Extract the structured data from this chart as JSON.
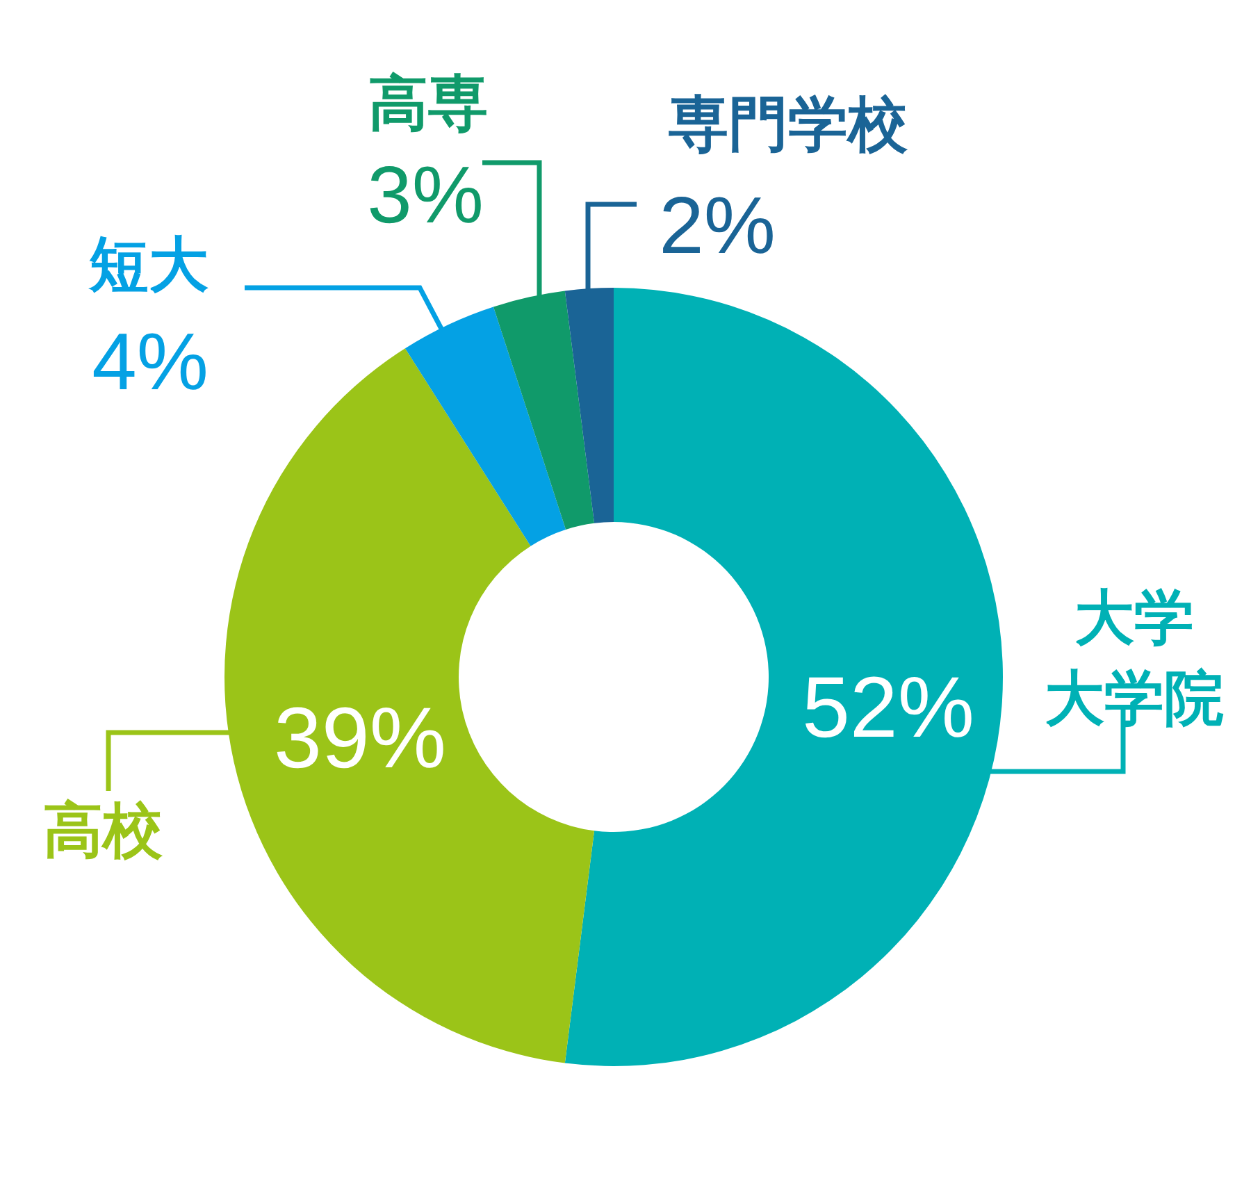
{
  "chart_data": {
    "type": "donut",
    "categories": [
      "大学大学院",
      "高校",
      "短大",
      "高専",
      "専門学校"
    ],
    "values": [
      52,
      39,
      4,
      3,
      2
    ],
    "colors": [
      "#00b1b5",
      "#9bc418",
      "#04a1e4",
      "#109a6a",
      "#1a6496"
    ],
    "value_labels": [
      "52%",
      "39%",
      "4%",
      "3%",
      "2%"
    ]
  }
}
